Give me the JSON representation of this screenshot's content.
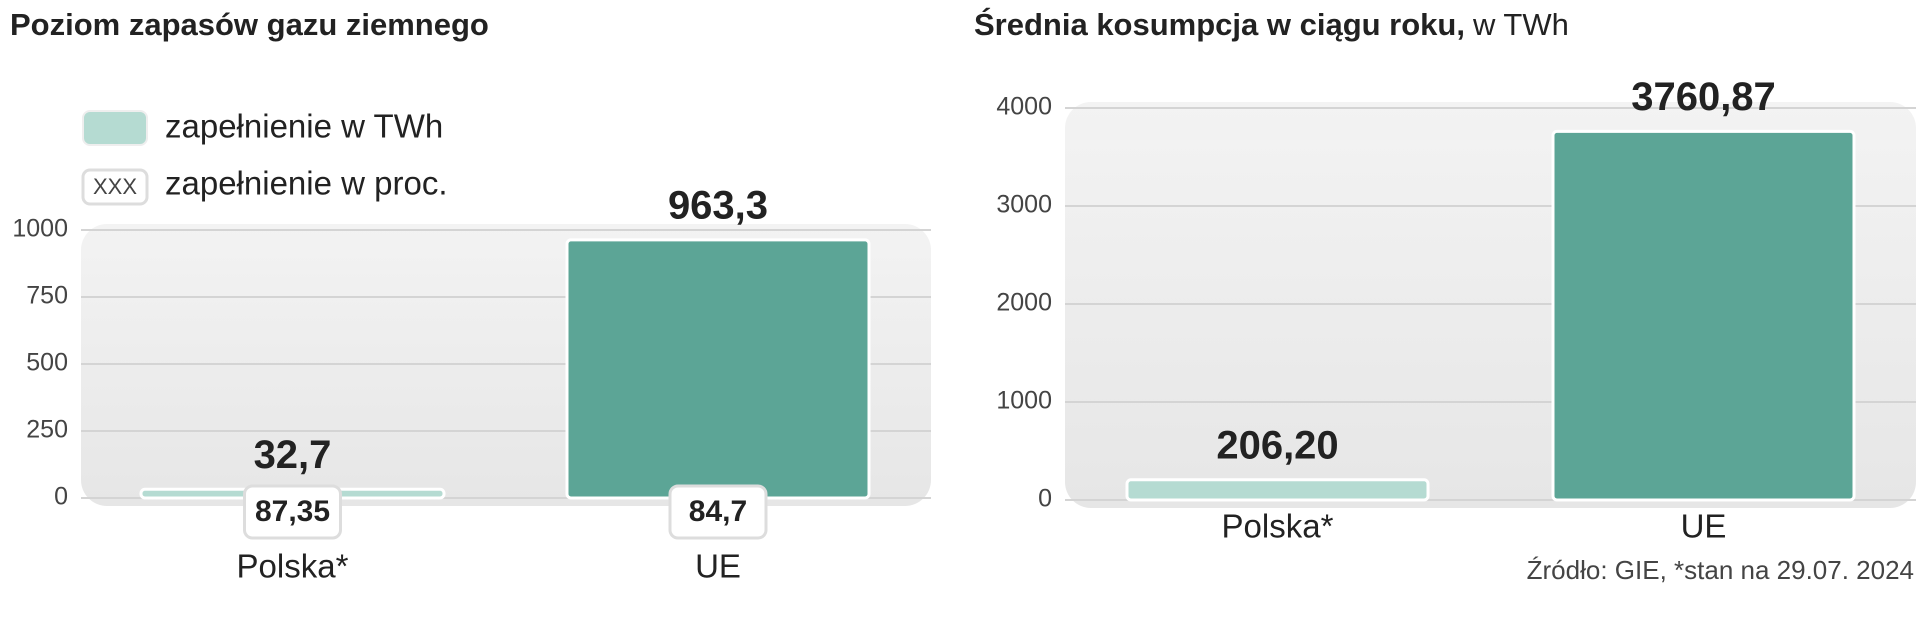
{
  "charts": [
    {
      "chart_data": {
        "type": "bar",
        "title": "Poziom zapasów gazu ziemnego",
        "legend": [
          "zapełnienie w TWh",
          "zapełnienie w proc."
        ],
        "legend_sample_text": "XXX",
        "categories": [
          "Polska*",
          "UE"
        ],
        "values": [
          32.7,
          963.3
        ],
        "value_labels": [
          "32,7",
          "963,3"
        ],
        "fill_percent": [
          87.35,
          84.7
        ],
        "fill_percent_labels": [
          "87,35",
          "84,7"
        ],
        "colors": [
          "#b5dbd2",
          "#5ca596"
        ],
        "ylim": [
          0,
          1000
        ],
        "yticks": [
          0,
          250,
          500,
          750,
          1000
        ],
        "grid": true
      }
    },
    {
      "chart_data": {
        "type": "bar",
        "title": "Średnia kosumpcja w ciągu roku,",
        "unit": "w TWh",
        "categories": [
          "Polska*",
          "UE"
        ],
        "values": [
          206.2,
          3760.87
        ],
        "value_labels": [
          "206,20",
          "3760,87"
        ],
        "colors": [
          "#b5dbd2",
          "#5ca596"
        ],
        "ylim": [
          0,
          4000
        ],
        "yticks": [
          0,
          1000,
          2000,
          3000,
          4000
        ],
        "grid": true,
        "source": "Źródło: GIE, *stan na 29.07. 2024"
      }
    }
  ]
}
